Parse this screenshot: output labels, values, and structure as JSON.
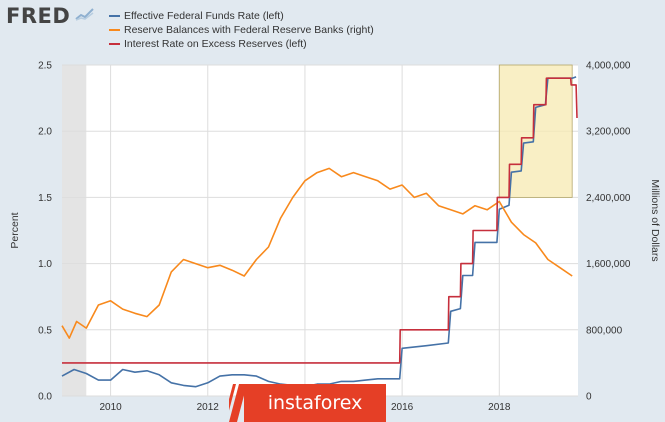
{
  "brand": {
    "logo_text": "FRED"
  },
  "watermark": {
    "text": "instaforex"
  },
  "chart_data": {
    "type": "line",
    "xlabel": "",
    "ylabel_left": "Percent",
    "ylabel_right": "Millions of Dollars",
    "xlim": [
      2009.0,
      2019.62
    ],
    "ylim_left": [
      0,
      2.5
    ],
    "ylim_right": [
      0,
      4000000
    ],
    "x_ticks": [
      {
        "value": 2010,
        "label": "2010"
      },
      {
        "value": 2012,
        "label": "2012"
      },
      {
        "value": 2014,
        "label": "2014"
      },
      {
        "value": 2016,
        "label": "2016"
      },
      {
        "value": 2018,
        "label": "2018"
      }
    ],
    "y_ticks_left": [
      {
        "value": 0,
        "label": "0.0"
      },
      {
        "value": 0.5,
        "label": "0.5"
      },
      {
        "value": 1.0,
        "label": "1.0"
      },
      {
        "value": 1.5,
        "label": "1.5"
      },
      {
        "value": 2.0,
        "label": "2.0"
      },
      {
        "value": 2.5,
        "label": "2.5"
      }
    ],
    "y_ticks_right": [
      {
        "value": 0,
        "label": "0"
      },
      {
        "value": 800000,
        "label": "800,000"
      },
      {
        "value": 1600000,
        "label": "1,600,000"
      },
      {
        "value": 2400000,
        "label": "2,400,000"
      },
      {
        "value": 3200000,
        "label": "3,200,000"
      },
      {
        "value": 4000000,
        "label": "4,000,000"
      }
    ],
    "recession_shading": {
      "x0": 2009.0,
      "x1": 2009.5
    },
    "highlight_box": {
      "x0": 2018.0,
      "x1": 2019.5,
      "y0_left": 1.5,
      "y1_left": 2.5
    },
    "grid": true,
    "series": [
      {
        "name": "Effective Federal Funds Rate (left)",
        "axis": "left",
        "color": "#4572a7",
        "x": [
          2009.0,
          2009.25,
          2009.5,
          2009.75,
          2010.0,
          2010.25,
          2010.5,
          2010.75,
          2011.0,
          2011.25,
          2011.5,
          2011.75,
          2012.0,
          2012.25,
          2012.5,
          2012.75,
          2013.0,
          2013.25,
          2013.5,
          2013.75,
          2014.0,
          2014.25,
          2014.5,
          2014.75,
          2015.0,
          2015.25,
          2015.5,
          2015.75,
          2015.95,
          2016.0,
          2016.5,
          2016.95,
          2017.0,
          2017.2,
          2017.25,
          2017.45,
          2017.5,
          2017.95,
          2018.0,
          2018.2,
          2018.25,
          2018.45,
          2018.5,
          2018.7,
          2018.75,
          2018.95,
          2019.0,
          2019.5,
          2019.58
        ],
        "values": [
          0.15,
          0.2,
          0.17,
          0.12,
          0.12,
          0.2,
          0.18,
          0.19,
          0.16,
          0.1,
          0.08,
          0.07,
          0.1,
          0.15,
          0.16,
          0.16,
          0.15,
          0.11,
          0.09,
          0.08,
          0.07,
          0.09,
          0.09,
          0.11,
          0.11,
          0.12,
          0.13,
          0.13,
          0.13,
          0.36,
          0.38,
          0.4,
          0.64,
          0.66,
          0.91,
          0.91,
          1.16,
          1.16,
          1.41,
          1.44,
          1.69,
          1.7,
          1.91,
          1.92,
          2.18,
          2.2,
          2.4,
          2.4,
          2.41
        ]
      },
      {
        "name": "Reserve Balances with Federal Reserve Banks (right)",
        "axis": "right",
        "color": "#f8891c",
        "x": [
          2009.0,
          2009.15,
          2009.3,
          2009.5,
          2009.75,
          2010.0,
          2010.25,
          2010.5,
          2010.75,
          2011.0,
          2011.25,
          2011.5,
          2011.75,
          2012.0,
          2012.25,
          2012.5,
          2012.75,
          2013.0,
          2013.25,
          2013.5,
          2013.75,
          2014.0,
          2014.25,
          2014.5,
          2014.75,
          2015.0,
          2015.25,
          2015.5,
          2015.75,
          2016.0,
          2016.25,
          2016.5,
          2016.75,
          2017.0,
          2017.25,
          2017.5,
          2017.75,
          2018.0,
          2018.25,
          2018.5,
          2018.75,
          2019.0,
          2019.25,
          2019.5
        ],
        "values": [
          850000,
          700000,
          900000,
          820000,
          1100000,
          1150000,
          1050000,
          1000000,
          960000,
          1100000,
          1500000,
          1650000,
          1600000,
          1550000,
          1580000,
          1520000,
          1450000,
          1650000,
          1800000,
          2150000,
          2400000,
          2600000,
          2700000,
          2750000,
          2650000,
          2700000,
          2650000,
          2600000,
          2500000,
          2550000,
          2400000,
          2450000,
          2300000,
          2250000,
          2200000,
          2300000,
          2250000,
          2350000,
          2100000,
          1950000,
          1850000,
          1650000,
          1550000,
          1450000
        ]
      },
      {
        "name": "Interest Rate on Excess Reserves (left)",
        "axis": "left",
        "color": "#c62f3c",
        "x": [
          2009.0,
          2015.95,
          2015.96,
          2016.95,
          2016.96,
          2017.2,
          2017.21,
          2017.45,
          2017.46,
          2017.95,
          2017.96,
          2018.2,
          2018.21,
          2018.45,
          2018.46,
          2018.7,
          2018.71,
          2018.96,
          2018.97,
          2019.47,
          2019.48,
          2019.58,
          2019.6
        ],
        "values": [
          0.25,
          0.25,
          0.5,
          0.5,
          0.75,
          0.75,
          1.0,
          1.0,
          1.25,
          1.25,
          1.5,
          1.5,
          1.75,
          1.75,
          1.95,
          1.95,
          2.2,
          2.2,
          2.4,
          2.4,
          2.35,
          2.35,
          2.1
        ]
      }
    ]
  }
}
